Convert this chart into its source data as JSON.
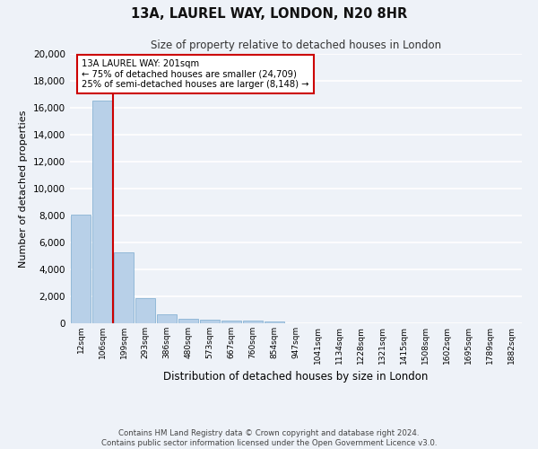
{
  "title": "13A, LAUREL WAY, LONDON, N20 8HR",
  "subtitle": "Size of property relative to detached houses in London",
  "xlabel": "Distribution of detached houses by size in London",
  "ylabel": "Number of detached properties",
  "categories": [
    "12sqm",
    "106sqm",
    "199sqm",
    "293sqm",
    "386sqm",
    "480sqm",
    "573sqm",
    "667sqm",
    "760sqm",
    "854sqm",
    "947sqm",
    "1041sqm",
    "1134sqm",
    "1228sqm",
    "1321sqm",
    "1415sqm",
    "1508sqm",
    "1602sqm",
    "1695sqm",
    "1789sqm",
    "1882sqm"
  ],
  "values": [
    8100,
    16500,
    5300,
    1850,
    700,
    350,
    270,
    220,
    180,
    130,
    0,
    0,
    0,
    0,
    0,
    0,
    0,
    0,
    0,
    0,
    0
  ],
  "bar_color": "#b8d0e8",
  "bar_edge_color": "#7aaace",
  "vline_color": "#cc0000",
  "annotation_text": "13A LAUREL WAY: 201sqm\n← 75% of detached houses are smaller (24,709)\n25% of semi-detached houses are larger (8,148) →",
  "annotation_box_color": "#ffffff",
  "annotation_box_edge": "#cc0000",
  "ylim": [
    0,
    20000
  ],
  "yticks": [
    0,
    2000,
    4000,
    6000,
    8000,
    10000,
    12000,
    14000,
    16000,
    18000,
    20000
  ],
  "background_color": "#eef2f8",
  "grid_color": "#ffffff",
  "footer_line1": "Contains HM Land Registry data © Crown copyright and database right 2024.",
  "footer_line2": "Contains public sector information licensed under the Open Government Licence v3.0."
}
